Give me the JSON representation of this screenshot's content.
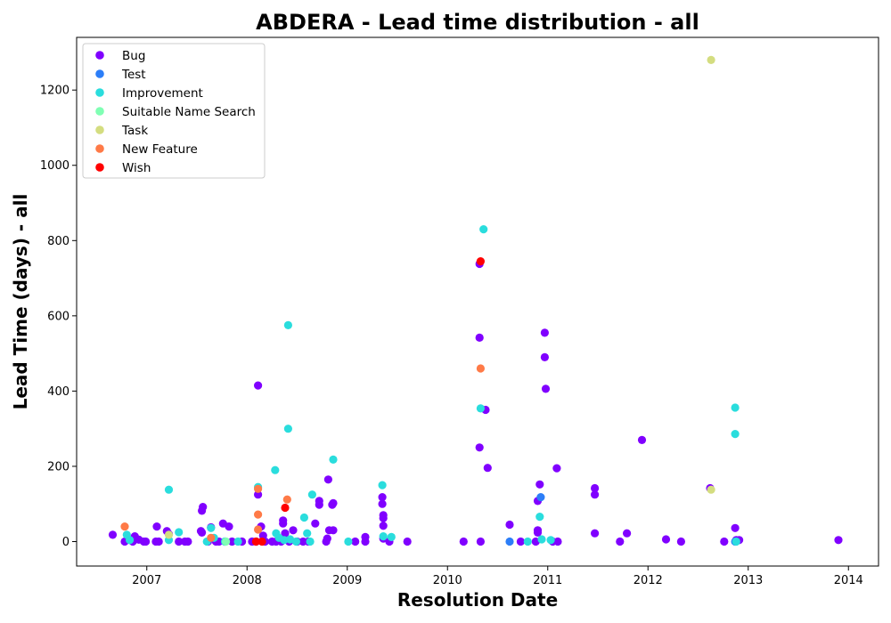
{
  "chart_data": {
    "type": "scatter",
    "title": "ABDERA - Lead time distribution - all",
    "xlabel": "Resolution Date",
    "ylabel": "Lead Time (days) - all",
    "xlim": [
      2006.3,
      2014.3
    ],
    "ylim": [
      -65,
      1340
    ],
    "xticks": [
      2007,
      2008,
      2009,
      2010,
      2011,
      2012,
      2013,
      2014
    ],
    "xtick_labels": [
      "2007",
      "2008",
      "2009",
      "2010",
      "2011",
      "2012",
      "2013",
      "2014"
    ],
    "yticks": [
      0,
      200,
      400,
      600,
      800,
      1000,
      1200
    ],
    "ytick_labels": [
      "0",
      "200",
      "400",
      "600",
      "800",
      "1000",
      "1200"
    ],
    "grid": false,
    "legend_position": "top-left",
    "series": [
      {
        "name": "Bug",
        "color": "#8000ff",
        "points": [
          [
            2006.66,
            18
          ],
          [
            2006.78,
            0
          ],
          [
            2006.86,
            0
          ],
          [
            2006.88,
            14
          ],
          [
            2006.92,
            5
          ],
          [
            2006.97,
            0
          ],
          [
            2006.99,
            0
          ],
          [
            2007.09,
            0
          ],
          [
            2007.1,
            40
          ],
          [
            2007.12,
            0
          ],
          [
            2007.2,
            28
          ],
          [
            2007.22,
            20
          ],
          [
            2007.32,
            0
          ],
          [
            2007.38,
            0
          ],
          [
            2007.41,
            0
          ],
          [
            2007.54,
            28
          ],
          [
            2007.55,
            24
          ],
          [
            2007.55,
            82
          ],
          [
            2007.56,
            92
          ],
          [
            2007.61,
            0
          ],
          [
            2007.64,
            38
          ],
          [
            2007.69,
            0
          ],
          [
            2007.72,
            0
          ],
          [
            2007.76,
            48
          ],
          [
            2007.78,
            0
          ],
          [
            2007.82,
            40
          ],
          [
            2007.85,
            0
          ],
          [
            2007.95,
            0
          ],
          [
            2008.05,
            0
          ],
          [
            2008.09,
            0
          ],
          [
            2008.11,
            415
          ],
          [
            2008.11,
            125
          ],
          [
            2008.14,
            40
          ],
          [
            2008.16,
            16
          ],
          [
            2008.18,
            0
          ],
          [
            2008.25,
            0
          ],
          [
            2008.29,
            0
          ],
          [
            2008.34,
            0
          ],
          [
            2008.36,
            48
          ],
          [
            2008.36,
            56
          ],
          [
            2008.38,
            22
          ],
          [
            2008.42,
            0
          ],
          [
            2008.46,
            30
          ],
          [
            2008.5,
            0
          ],
          [
            2008.56,
            0
          ],
          [
            2008.61,
            0
          ],
          [
            2008.68,
            48
          ],
          [
            2008.72,
            108
          ],
          [
            2008.72,
            98
          ],
          [
            2008.79,
            0
          ],
          [
            2008.8,
            8
          ],
          [
            2008.81,
            165
          ],
          [
            2008.82,
            30
          ],
          [
            2008.85,
            98
          ],
          [
            2008.86,
            102
          ],
          [
            2008.86,
            30
          ],
          [
            2009.08,
            0
          ],
          [
            2009.18,
            0
          ],
          [
            2009.18,
            12
          ],
          [
            2009.35,
            118
          ],
          [
            2009.35,
            100
          ],
          [
            2009.36,
            70
          ],
          [
            2009.36,
            62
          ],
          [
            2009.36,
            42
          ],
          [
            2009.36,
            8
          ],
          [
            2009.42,
            0
          ],
          [
            2009.6,
            0
          ],
          [
            2010.16,
            0
          ],
          [
            2010.32,
            542
          ],
          [
            2010.32,
            738
          ],
          [
            2010.32,
            250
          ],
          [
            2010.33,
            0
          ],
          [
            2010.38,
            350
          ],
          [
            2010.4,
            196
          ],
          [
            2010.62,
            45
          ],
          [
            2010.73,
            0
          ],
          [
            2010.88,
            0
          ],
          [
            2010.9,
            30
          ],
          [
            2010.9,
            24
          ],
          [
            2010.9,
            108
          ],
          [
            2010.92,
            152
          ],
          [
            2010.97,
            555
          ],
          [
            2010.97,
            490
          ],
          [
            2010.98,
            406
          ],
          [
            2011.05,
            0
          ],
          [
            2011.09,
            195
          ],
          [
            2011.1,
            0
          ],
          [
            2011.47,
            142
          ],
          [
            2011.47,
            125
          ],
          [
            2011.47,
            22
          ],
          [
            2011.72,
            0
          ],
          [
            2011.79,
            22
          ],
          [
            2011.94,
            270
          ],
          [
            2012.18,
            6
          ],
          [
            2012.33,
            0
          ],
          [
            2012.62,
            142
          ],
          [
            2012.76,
            0
          ],
          [
            2012.87,
            36
          ],
          [
            2012.88,
            4
          ],
          [
            2012.91,
            4
          ],
          [
            2013.9,
            4
          ]
        ]
      },
      {
        "name": "Test",
        "color": "#2c7ef8",
        "points": [
          [
            2010.62,
            0
          ],
          [
            2010.93,
            118
          ],
          [
            2012.87,
            0
          ]
        ]
      },
      {
        "name": "Improvement",
        "color": "#2adddd",
        "points": [
          [
            2006.8,
            18
          ],
          [
            2006.83,
            4
          ],
          [
            2007.22,
            138
          ],
          [
            2007.22,
            4
          ],
          [
            2007.32,
            25
          ],
          [
            2007.6,
            0
          ],
          [
            2007.64,
            36
          ],
          [
            2007.67,
            10
          ],
          [
            2007.78,
            0
          ],
          [
            2007.91,
            0
          ],
          [
            2008.11,
            145
          ],
          [
            2008.28,
            190
          ],
          [
            2008.29,
            22
          ],
          [
            2008.32,
            10
          ],
          [
            2008.37,
            4
          ],
          [
            2008.41,
            575
          ],
          [
            2008.41,
            300
          ],
          [
            2008.43,
            6
          ],
          [
            2008.49,
            0
          ],
          [
            2008.57,
            64
          ],
          [
            2008.6,
            22
          ],
          [
            2008.63,
            0
          ],
          [
            2008.65,
            125
          ],
          [
            2008.86,
            218
          ],
          [
            2009.01,
            0
          ],
          [
            2009.35,
            150
          ],
          [
            2009.36,
            14
          ],
          [
            2009.44,
            12
          ],
          [
            2010.33,
            354
          ],
          [
            2010.36,
            830
          ],
          [
            2010.8,
            0
          ],
          [
            2010.92,
            66
          ],
          [
            2010.94,
            6
          ],
          [
            2011.03,
            4
          ],
          [
            2012.87,
            356
          ],
          [
            2012.87,
            286
          ],
          [
            2012.88,
            0
          ]
        ]
      },
      {
        "name": "Suitable Name Search",
        "color": "#80ffb4",
        "points": [
          [
            2007.79,
            0
          ]
        ]
      },
      {
        "name": "Task",
        "color": "#d4dd80",
        "points": [
          [
            2007.22,
            18
          ],
          [
            2012.63,
            1280
          ],
          [
            2012.63,
            138
          ]
        ]
      },
      {
        "name": "New Feature",
        "color": "#ff7a47",
        "points": [
          [
            2006.78,
            40
          ],
          [
            2007.64,
            10
          ],
          [
            2008.11,
            140
          ],
          [
            2008.11,
            72
          ],
          [
            2008.11,
            32
          ],
          [
            2008.4,
            112
          ],
          [
            2010.33,
            460
          ]
        ]
      },
      {
        "name": "Wish",
        "color": "#ff0000",
        "points": [
          [
            2008.09,
            0
          ],
          [
            2008.15,
            0
          ],
          [
            2008.38,
            90
          ],
          [
            2010.33,
            745
          ]
        ]
      }
    ]
  }
}
